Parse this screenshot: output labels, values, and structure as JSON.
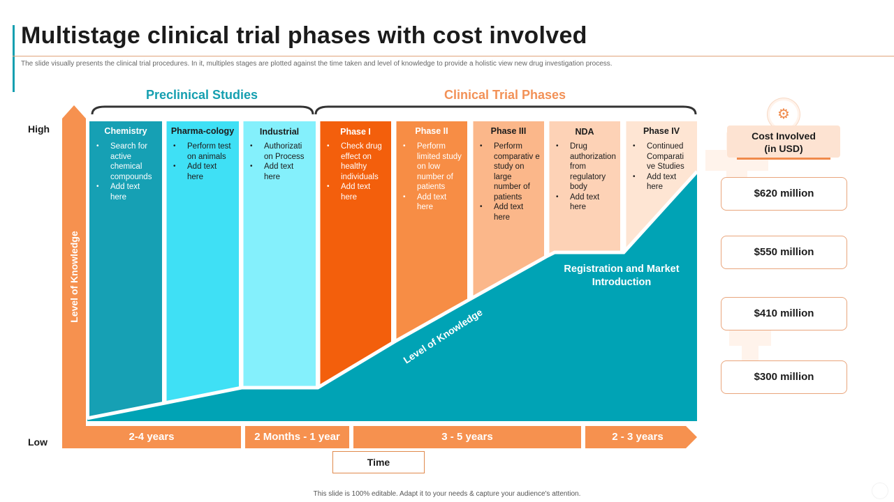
{
  "title": "Multistage clinical trial phases with cost involved",
  "subtitle": "The slide visually presents the clinical trial procedures. In it, multiples stages are plotted against the time taken and level of knowledge to provide a holistic view new drug investigation process.",
  "groups": {
    "preclinical": "Preclinical Studies",
    "clinical": "Clinical Trial Phases"
  },
  "axis": {
    "high": "High",
    "low": "Low",
    "y_label": "Level of Knowledge",
    "curve_label": "Level of Knowledge",
    "x_label": "Time"
  },
  "columns": [
    {
      "title": "Chemistry",
      "bullets": [
        "Search for active chemical compounds",
        "Add text here"
      ],
      "color": "#16a0b4",
      "text_color": "#ffffff",
      "knowledge": 0.08
    },
    {
      "title": "Pharma-cology",
      "bullets": [
        "Perform test on animals",
        "Add text here"
      ],
      "color": "#3fe0f5",
      "text_color": "#1b1b1b",
      "knowledge": 0.14
    },
    {
      "title": "Industrial",
      "bullets": [
        "Authorizati on Process",
        "Add text here"
      ],
      "color": "#84f0fc",
      "text_color": "#1b1b1b",
      "knowledge": 0.14
    },
    {
      "title": "Phase I",
      "bullets": [
        "Check drug effect on healthy individuals",
        "Add text here"
      ],
      "color": "#f35f0c",
      "text_color": "#ffffff",
      "knowledge": 0.28
    },
    {
      "title": "Phase II",
      "bullets": [
        "Perform limited study on low number of patients",
        "Add text here"
      ],
      "color": "#f78d45",
      "text_color": "#ffffff",
      "knowledge": 0.42
    },
    {
      "title": "Phase III",
      "bullets": [
        "Perform comparativ e study on large number of patients",
        "Add text here"
      ],
      "color": "#fbb78a",
      "text_color": "#1b1b1b",
      "knowledge": 0.56
    },
    {
      "title": "NDA",
      "bullets": [
        "Drug authorization from regulatory body",
        "Add text here"
      ],
      "color": "#fdd2b6",
      "text_color": "#1b1b1b",
      "knowledge": 0.56
    },
    {
      "title": "Phase IV",
      "bullets": [
        "Continued Comparati ve Studies",
        "Add text here"
      ],
      "color": "#fee5d3",
      "text_color": "#1b1b1b",
      "knowledge": 0.84
    }
  ],
  "registration": "Registration and Market Introduction",
  "time_segments": [
    "2-4 years",
    "2 Months - 1 year",
    "3 - 5 years",
    "2 - 3 years"
  ],
  "cost": {
    "heading": "Cost Involved (in USD)",
    "values": [
      "$620 million",
      "$550 million",
      "$410 million",
      "$300 million"
    ]
  },
  "footer": "This slide is 100% editable. Adapt it to your needs & capture your audience's attention.",
  "colors": {
    "teal": "#00a3b5",
    "orange": "#f6914f",
    "title_teal": "#159fb0"
  }
}
